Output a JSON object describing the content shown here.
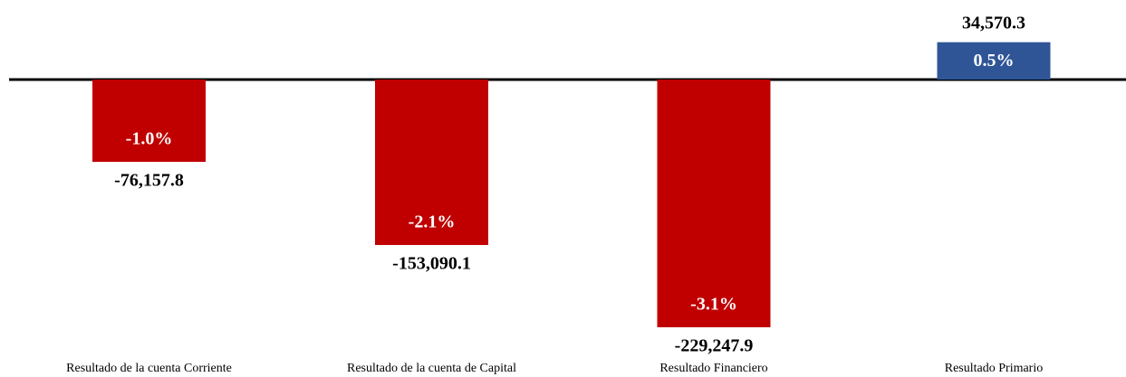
{
  "chart_data": {
    "type": "bar",
    "categories": [
      "Resultado de la cuenta Corriente",
      "Resultado de la cuenta de Capital",
      "Resultado Financiero",
      "Resultado Primario"
    ],
    "values": [
      -76157.8,
      -153090.1,
      -229247.9,
      34570.3
    ],
    "value_labels": [
      "-76,157.8",
      "-153,090.1",
      "-229,247.9",
      "34,570.3"
    ],
    "share_labels": [
      "-1.0%",
      "-2.1%",
      "-3.1%",
      "0.5%"
    ],
    "colors": [
      "#c00000",
      "#c00000",
      "#c00000",
      "#2f5597"
    ]
  }
}
